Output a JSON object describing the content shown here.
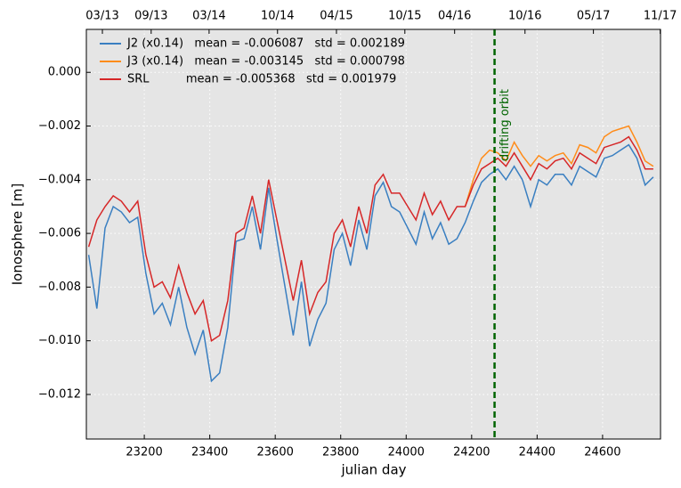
{
  "chart_data": {
    "type": "line",
    "xlabel": "julian day",
    "ylabel": "Ionosphere [m]",
    "xlim": [
      23023,
      24777
    ],
    "ylim": [
      -0.01366,
      0.0016
    ],
    "xticks": [
      23200,
      23400,
      23600,
      23800,
      24000,
      24200,
      24400,
      24600
    ],
    "yticks": [
      {
        "value": 0,
        "label": "0.000"
      },
      {
        "value": -0.002,
        "label": "−0.002"
      },
      {
        "value": -0.004,
        "label": "−0.004"
      },
      {
        "value": -0.006,
        "label": "−0.006"
      },
      {
        "value": -0.008,
        "label": "−0.008"
      },
      {
        "value": -0.01,
        "label": "−0.010"
      },
      {
        "value": -0.012,
        "label": "−0.012"
      }
    ],
    "x2ticks": [
      {
        "value": 23072,
        "label": "03/13"
      },
      {
        "value": 23221,
        "label": "09/13"
      },
      {
        "value": 23398,
        "label": "03/14"
      },
      {
        "value": 23607,
        "label": "10/14"
      },
      {
        "value": 23787,
        "label": "04/15"
      },
      {
        "value": 23996,
        "label": "10/15"
      },
      {
        "value": 24148,
        "label": "04/16"
      },
      {
        "value": 24363,
        "label": "10/16"
      },
      {
        "value": 24572,
        "label": "05/17"
      },
      {
        "value": 24776,
        "label": "11/17"
      }
    ],
    "grid": true,
    "legend": "upper left",
    "vline": {
      "x": 24270,
      "color": "#006400",
      "label": "drifting orbit"
    },
    "x": [
      23030,
      23055,
      23080,
      23105,
      23130,
      23155,
      23180,
      23205,
      23230,
      23255,
      23280,
      23305,
      23330,
      23355,
      23380,
      23405,
      23430,
      23455,
      23480,
      23505,
      23530,
      23555,
      23580,
      23605,
      23630,
      23655,
      23680,
      23705,
      23730,
      23755,
      23780,
      23805,
      23830,
      23855,
      23880,
      23905,
      23930,
      23955,
      23980,
      24005,
      24030,
      24055,
      24080,
      24105,
      24130,
      24155,
      24180,
      24205,
      24230,
      24255,
      24280,
      24305,
      24330,
      24355,
      24380,
      24405,
      24430,
      24455,
      24480,
      24505,
      24530,
      24555,
      24580,
      24605,
      24630,
      24655,
      24680,
      24705,
      24730,
      24755
    ],
    "series": [
      {
        "name": "J2 (x0.14)   mean = -0.006087   std = 0.002189",
        "color": "#3a7fc1",
        "values": [
          -0.0068,
          -0.0088,
          -0.0058,
          -0.005,
          -0.0052,
          -0.0056,
          -0.0054,
          -0.0075,
          -0.009,
          -0.0086,
          -0.0094,
          -0.008,
          -0.0095,
          -0.0105,
          -0.0096,
          -0.0115,
          -0.0112,
          -0.0095,
          -0.0063,
          -0.0062,
          -0.005,
          -0.0066,
          -0.0043,
          -0.0062,
          -0.008,
          -0.0098,
          -0.0078,
          -0.0102,
          -0.0092,
          -0.0086,
          -0.0066,
          -0.006,
          -0.0072,
          -0.0055,
          -0.0066,
          -0.0046,
          -0.0041,
          -0.005,
          -0.0052,
          -0.0058,
          -0.0064,
          -0.0052,
          -0.0062,
          -0.0056,
          -0.0064,
          -0.0062,
          -0.0056,
          -0.0048,
          -0.0041,
          -0.0038,
          -0.0036,
          -0.004,
          -0.0035,
          -0.004,
          -0.005,
          -0.004,
          -0.0042,
          -0.0038,
          -0.0038,
          -0.0042,
          -0.0035,
          -0.0037,
          -0.0039,
          -0.0032,
          -0.0031,
          -0.0029,
          -0.0027,
          -0.0032,
          -0.0042,
          -0.0039
        ]
      },
      {
        "name": "J3 (x0.14)   mean = -0.003145   std = 0.000798",
        "color": "#ff8c1a",
        "values": [
          null,
          null,
          null,
          null,
          null,
          null,
          null,
          null,
          null,
          null,
          null,
          null,
          null,
          null,
          null,
          null,
          null,
          null,
          null,
          null,
          null,
          null,
          null,
          null,
          null,
          null,
          null,
          null,
          null,
          null,
          null,
          null,
          null,
          null,
          null,
          null,
          null,
          null,
          null,
          null,
          null,
          null,
          null,
          null,
          null,
          null,
          -0.005,
          -0.004,
          -0.0032,
          -0.0029,
          -0.003,
          -0.0033,
          -0.0026,
          -0.0031,
          -0.0035,
          -0.0031,
          -0.0033,
          -0.0031,
          -0.003,
          -0.0034,
          -0.0027,
          -0.0028,
          -0.003,
          -0.0024,
          -0.0022,
          -0.0021,
          -0.002,
          -0.0026,
          -0.0033,
          -0.0035
        ]
      },
      {
        "name": "SRL          mean = -0.005368   std = 0.001979",
        "color": "#d62728",
        "values": [
          -0.0065,
          -0.0055,
          -0.005,
          -0.0046,
          -0.0048,
          -0.0052,
          -0.0048,
          -0.0068,
          -0.008,
          -0.0078,
          -0.0084,
          -0.0072,
          -0.0082,
          -0.009,
          -0.0085,
          -0.01,
          -0.0098,
          -0.0085,
          -0.006,
          -0.0058,
          -0.0046,
          -0.006,
          -0.004,
          -0.0055,
          -0.007,
          -0.0085,
          -0.007,
          -0.009,
          -0.0082,
          -0.0078,
          -0.006,
          -0.0055,
          -0.0065,
          -0.005,
          -0.006,
          -0.0042,
          -0.0038,
          -0.0045,
          -0.0045,
          -0.005,
          -0.0055,
          -0.0045,
          -0.0053,
          -0.0048,
          -0.0055,
          -0.005,
          -0.005,
          -0.0042,
          -0.0036,
          -0.0034,
          -0.0032,
          -0.0035,
          -0.003,
          -0.0035,
          -0.004,
          -0.0034,
          -0.0036,
          -0.0033,
          -0.0032,
          -0.0036,
          -0.003,
          -0.0032,
          -0.0034,
          -0.0028,
          -0.0027,
          -0.0026,
          -0.0024,
          -0.0029,
          -0.0036,
          -0.0036
        ]
      }
    ]
  }
}
